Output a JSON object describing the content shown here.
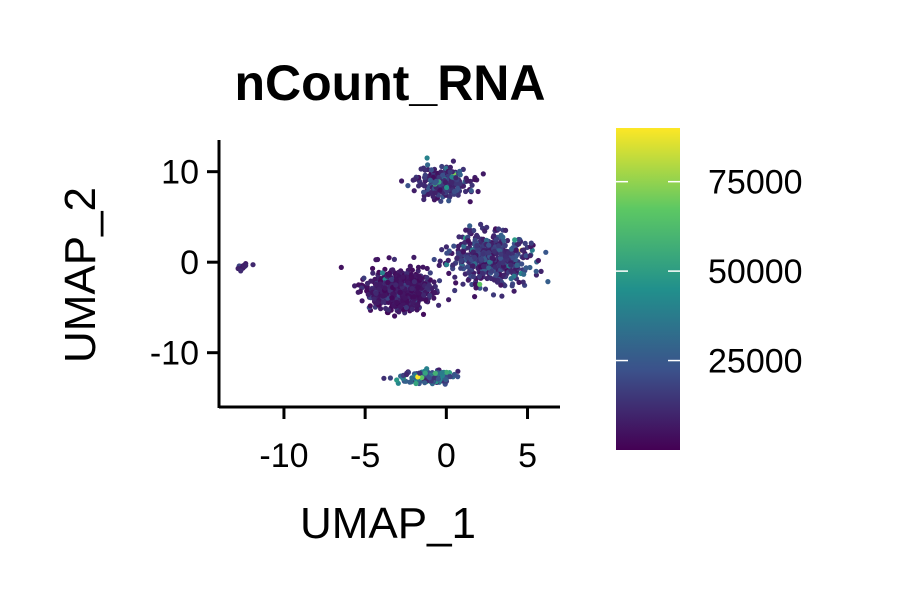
{
  "chart_data": {
    "type": "scatter",
    "title": "nCount_RNA",
    "xlabel": "UMAP_1",
    "ylabel": "UMAP_2",
    "xlim": [
      -14,
      7
    ],
    "ylim": [
      -16,
      13.5
    ],
    "x_ticks": [
      {
        "value": -10,
        "label": "-10"
      },
      {
        "value": -5,
        "label": "-5"
      },
      {
        "value": 0,
        "label": "0"
      },
      {
        "value": 5,
        "label": "5"
      }
    ],
    "y_ticks": [
      {
        "value": 10,
        "label": "10"
      },
      {
        "value": 0,
        "label": "0"
      },
      {
        "value": -10,
        "label": "-10"
      }
    ],
    "grid": false,
    "legend": {
      "type": "colorbar",
      "placement": "right",
      "colormap": "viridis",
      "range": [
        0,
        90000
      ],
      "ticks": [
        {
          "value": 75000,
          "label": "75000"
        },
        {
          "value": 50000,
          "label": "50000"
        },
        {
          "value": 25000,
          "label": "25000"
        }
      ]
    },
    "colors": [
      "#440154",
      "#3b528b",
      "#21908c",
      "#5dc863",
      "#fde725"
    ],
    "clusters": [
      {
        "center": [
          -12.5,
          -0.5
        ],
        "spread": [
          0.45,
          0.3
        ],
        "angle_deg": 30,
        "n": 18,
        "mean_value": 9000
      },
      {
        "center": [
          -2.8,
          -3.0
        ],
        "spread": [
          1.9,
          2.2
        ],
        "angle_deg": 0,
        "n": 700,
        "mean_value": 6000
      },
      {
        "center": [
          2.8,
          0.3
        ],
        "spread": [
          2.4,
          2.7
        ],
        "angle_deg": 0,
        "n": 550,
        "mean_value": 14000
      },
      {
        "center": [
          -0.2,
          8.8
        ],
        "spread": [
          1.7,
          1.5
        ],
        "angle_deg": 0,
        "n": 280,
        "mean_value": 12000
      },
      {
        "center": [
          -1.2,
          -12.7
        ],
        "spread": [
          1.6,
          0.65
        ],
        "angle_deg": 0,
        "n": 180,
        "mean_value": 24000
      }
    ]
  }
}
